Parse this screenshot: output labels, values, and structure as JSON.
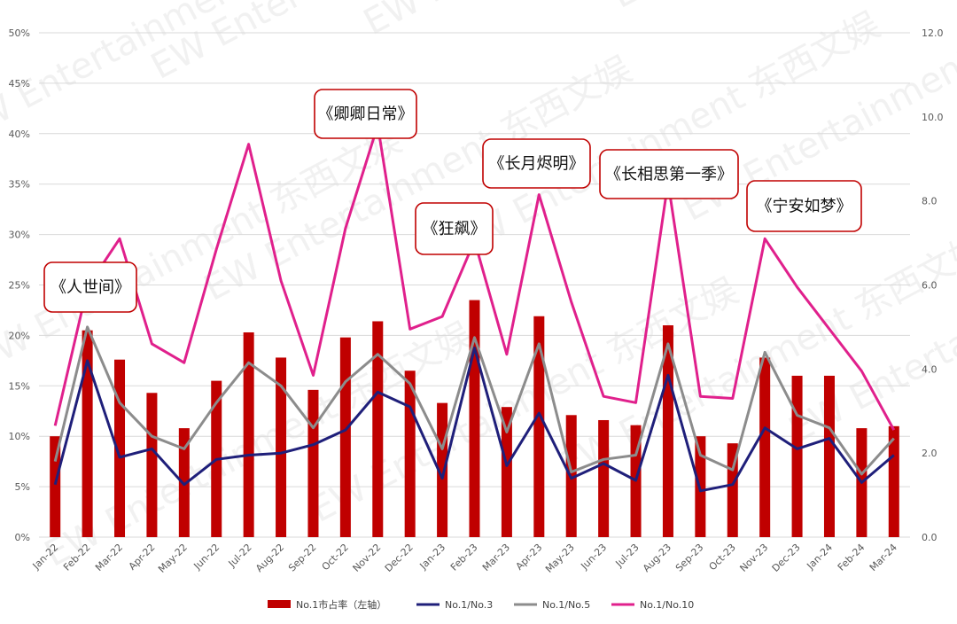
{
  "chart_data": {
    "type": "bar+line",
    "categories": [
      "Jan-22",
      "Feb-22",
      "Mar-22",
      "Apr-22",
      "May-22",
      "Jun-22",
      "Jul-22",
      "Aug-22",
      "Sep-22",
      "Oct-22",
      "Nov-22",
      "Dec-22",
      "Jan-23",
      "Feb-23",
      "Mar-23",
      "Apr-23",
      "May-23",
      "Jun-23",
      "Jul-23",
      "Aug-23",
      "Sep-23",
      "Oct-23",
      "Nov-23",
      "Dec-23",
      "Jan-24",
      "Feb-24",
      "Mar-24"
    ],
    "y_left": {
      "min": 0,
      "max": 50,
      "ticks": [
        "0%",
        "5%",
        "10%",
        "15%",
        "20%",
        "25%",
        "30%",
        "35%",
        "40%",
        "45%",
        "50%"
      ]
    },
    "y_right": {
      "min": 0,
      "max": 12,
      "ticks": [
        "0.0",
        "2.0",
        "4.0",
        "6.0",
        "8.0",
        "10.0",
        "12.0"
      ]
    },
    "grid": true,
    "legend_position": "bottom",
    "bars": {
      "name": "No.1市占率（左轴）",
      "color": "#c00000",
      "axis": "left",
      "values": [
        10,
        20.5,
        17.6,
        14.3,
        10.8,
        15.5,
        20.3,
        17.8,
        14.6,
        19.8,
        21.4,
        16.5,
        13.3,
        23.5,
        12.9,
        21.9,
        12.1,
        11.6,
        11.1,
        21,
        10,
        9.3,
        17.8,
        16,
        16,
        10.8,
        11
      ]
    },
    "series": [
      {
        "name": "No.1/No.3",
        "color": "#1f1f7a",
        "axis": "right",
        "values": [
          1.25,
          4.2,
          1.9,
          2.1,
          1.25,
          1.85,
          1.95,
          2.0,
          2.2,
          2.55,
          3.45,
          3.1,
          1.4,
          4.5,
          1.7,
          2.95,
          1.4,
          1.75,
          1.35,
          3.85,
          1.1,
          1.25,
          2.6,
          2.1,
          2.35,
          1.3,
          1.95
        ]
      },
      {
        "name": "No.1/No.5",
        "color": "#8c8c8c",
        "axis": "right",
        "values": [
          1.8,
          5.0,
          3.2,
          2.4,
          2.1,
          3.2,
          4.15,
          3.6,
          2.6,
          3.7,
          4.35,
          3.65,
          2.1,
          4.75,
          2.5,
          4.6,
          1.55,
          1.85,
          1.95,
          4.6,
          1.95,
          1.6,
          4.4,
          2.9,
          2.6,
          1.5,
          2.35
        ]
      },
      {
        "name": "No.1/No.10",
        "color": "#e0208c",
        "axis": "right",
        "values": [
          2.65,
          5.95,
          7.1,
          4.6,
          4.15,
          6.85,
          9.35,
          6.1,
          3.85,
          7.35,
          9.8,
          4.95,
          5.25,
          7.05,
          4.35,
          8.15,
          5.6,
          3.35,
          3.2,
          8.45,
          3.35,
          3.3,
          7.1,
          5.95,
          4.95,
          3.95,
          2.55
        ]
      }
    ],
    "annotations": [
      {
        "text": "《人世间》",
        "category": "Feb-22"
      },
      {
        "text": "《卿卿日常》",
        "category": "Nov-22"
      },
      {
        "text": "《狂飙》",
        "category": "Feb-23"
      },
      {
        "text": "《长月烬明》",
        "category": "Apr-23"
      },
      {
        "text": "《长相思第一季》",
        "category": "Aug-23"
      },
      {
        "text": "《宁安如梦》",
        "category": "Nov-23"
      }
    ]
  },
  "watermark": "EW Entertainment 东西文娱"
}
